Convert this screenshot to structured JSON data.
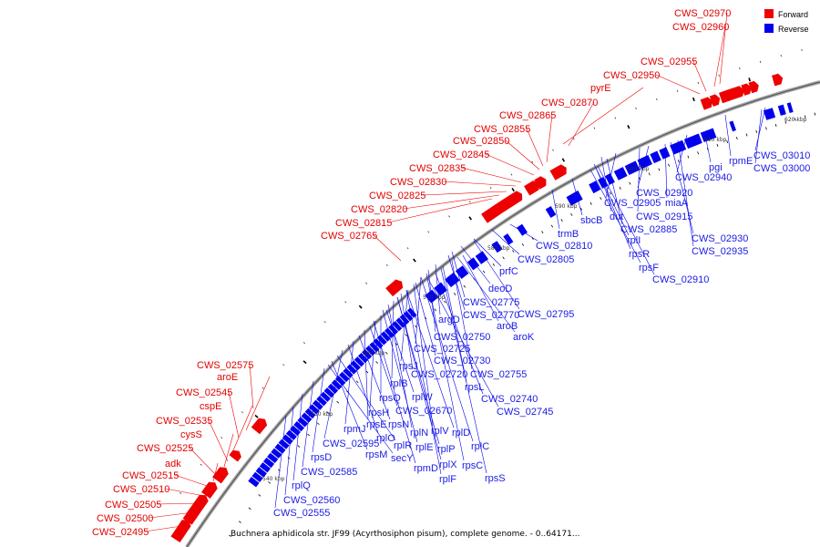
{
  "caption": "Buchnera aphidicola str. JF99 (Acyrthosiphon pisum), complete genome. - 0..64171...",
  "legend": [
    {
      "label": "Forward",
      "color": "#ee0000"
    },
    {
      "label": "Reverse",
      "color": "#0000ee"
    }
  ],
  "colors": {
    "forward": "#ee0000",
    "reverse": "#0000ee",
    "backbone": "#888888"
  },
  "kbp_labels": [
    "540 kbp",
    "550 kbp",
    "560 kbp",
    "570 kbp",
    "580 kbp",
    "590 kbp",
    "600 kbp",
    "610 kbp",
    "620 kbp"
  ],
  "forward_labels": [
    "CWS_02970",
    "CWS_02960",
    "CWS_02955",
    "CWS_02950",
    "pyrE",
    "CWS_02870",
    "CWS_02865",
    "CWS_02855",
    "CWS_02850",
    "CWS_02845",
    "CWS_02835",
    "CWS_02830",
    "CWS_02825",
    "CWS_02820",
    "CWS_02815",
    "CWS_02765",
    "CWS_02575",
    "aroE",
    "CWS_02545",
    "cspE",
    "CWS_02535",
    "cysS",
    "CWS_02525",
    "adk",
    "CWS_02515",
    "CWS_02510",
    "CWS_02505",
    "CWS_02500",
    "CWS_02495"
  ],
  "reverse_labels": [
    "pgi",
    "rpmE",
    "CWS_03010",
    "CWS_03000",
    "CWS_02940",
    "CWS_02920",
    "miaA",
    "CWS_02915",
    "CWS_02905",
    "dut",
    "CWS_02885",
    "rplI",
    "rpsR",
    "rpsF",
    "CWS_02910",
    "CWS_02930",
    "CWS_02935",
    "sbcB",
    "trmB",
    "CWS_02810",
    "CWS_02805",
    "prfC",
    "deoD",
    "CWS_02775",
    "CWS_02770",
    "CWS_02795",
    "argD",
    "aroB",
    "aroK",
    "CWS_02750",
    "CWS_02725",
    "CWS_02730",
    "rpsJ",
    "CWS_02720",
    "CWS_02755",
    "rplB",
    "rpsL",
    "rplW",
    "rpsQ",
    "CWS_02740",
    "CWS_02745",
    "rpsH",
    "CWS_02670",
    "rpsE",
    "rpsN",
    "rplV",
    "rplD",
    "rpmJ",
    "rplO",
    "rplN",
    "rplE",
    "rplP",
    "rplC",
    "CWS_02595",
    "rplR",
    "rpsM",
    "secY",
    "rplX",
    "rpsC",
    "rpsD",
    "rpmD",
    "rplF",
    "rpsS",
    "CWS_02585",
    "rplQ",
    "CWS_02560",
    "CWS_02555"
  ]
}
